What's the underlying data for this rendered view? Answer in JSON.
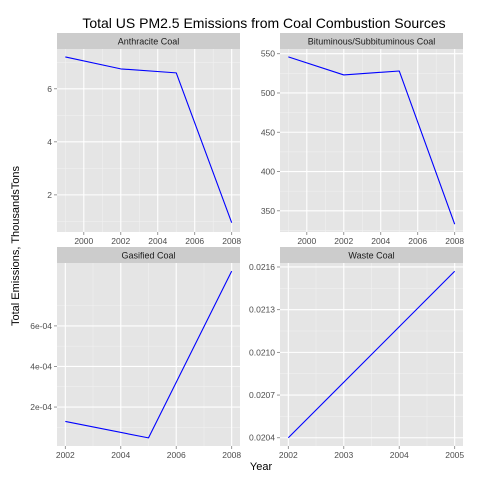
{
  "chart_data": {
    "type": "line",
    "title": "Total US PM2.5 Emissions from Coal Combustion Sources",
    "xlabel": "Year",
    "ylabel": "Total Emissions, ThousandsTons",
    "line_color": "#0000ff",
    "panel_background": "#e5e5e5",
    "strip_background": "#cccccc",
    "grid": true,
    "grid_color": "#ffffff",
    "facets": [
      {
        "label": "Anthracite Coal",
        "x": [
          1999,
          2002,
          2005,
          2008
        ],
        "y": [
          7.2,
          6.75,
          6.6,
          0.95
        ],
        "xlim": [
          1998.55,
          2008.45
        ],
        "ylim": [
          0.6,
          7.5
        ],
        "xticks": [
          2000,
          2002,
          2004,
          2006,
          2008
        ],
        "xtick_labels": [
          "2000",
          "2002",
          "2004",
          "2006",
          "2008"
        ],
        "yticks": [
          2,
          4,
          6
        ],
        "ytick_labels": [
          "2",
          "4",
          "6"
        ]
      },
      {
        "label": "Bituminous/Subbituminous Coal",
        "x": [
          1999,
          2002,
          2005,
          2008
        ],
        "y": [
          546,
          523,
          528,
          333
        ],
        "xlim": [
          1998.55,
          2008.45
        ],
        "ylim": [
          323,
          556
        ],
        "xticks": [
          2000,
          2002,
          2004,
          2006,
          2008
        ],
        "xtick_labels": [
          "2000",
          "2002",
          "2004",
          "2006",
          "2008"
        ],
        "yticks": [
          350,
          400,
          450,
          500,
          550
        ],
        "ytick_labels": [
          "350",
          "400",
          "450",
          "500",
          "550"
        ]
      },
      {
        "label": "Gasified Coal",
        "x": [
          2002,
          2005,
          2008
        ],
        "y": [
          0.000129,
          4.8e-05,
          0.00087
        ],
        "xlim": [
          2001.7,
          2008.3
        ],
        "ylim": [
          8e-06,
          0.00091
        ],
        "xticks": [
          2002,
          2004,
          2006,
          2008
        ],
        "xtick_labels": [
          "2002",
          "2004",
          "2006",
          "2008"
        ],
        "yticks": [
          0.0002,
          0.0004,
          0.0006
        ],
        "ytick_labels": [
          "2e-04",
          "4e-04",
          "6e-04"
        ]
      },
      {
        "label": "Waste Coal",
        "x": [
          2002,
          2005
        ],
        "y": [
          0.0204,
          0.02157
        ],
        "xlim": [
          2001.85,
          2005.15
        ],
        "ylim": [
          0.020342,
          0.021628
        ],
        "xticks": [
          2002,
          2003,
          2004,
          2005
        ],
        "xtick_labels": [
          "2002",
          "2003",
          "2004",
          "2005"
        ],
        "yticks": [
          0.0204,
          0.0207,
          0.021,
          0.0213,
          0.0216
        ],
        "ytick_labels": [
          "0.0204",
          "0.0207",
          "0.0210",
          "0.0213",
          "0.0216"
        ]
      }
    ]
  }
}
